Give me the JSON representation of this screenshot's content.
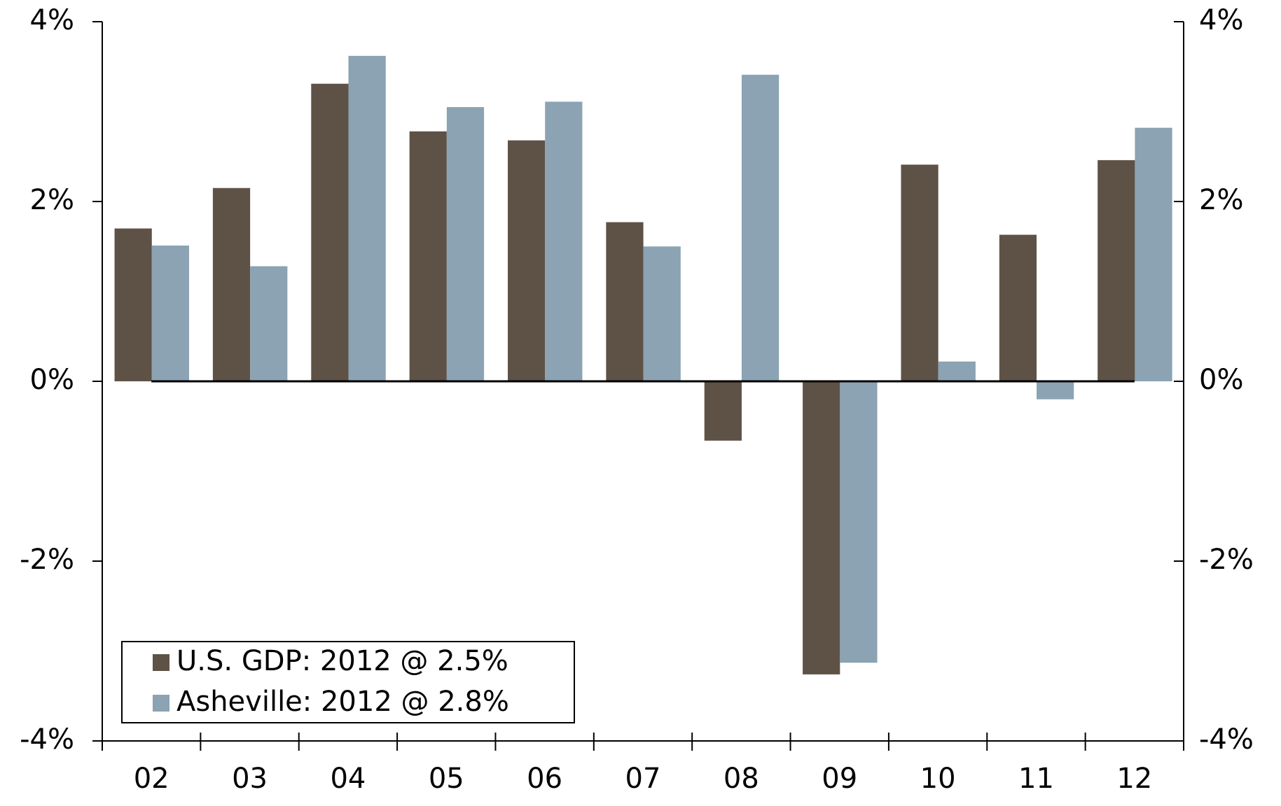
{
  "chart_data": {
    "type": "bar",
    "categories": [
      "02",
      "03",
      "04",
      "05",
      "06",
      "07",
      "08",
      "09",
      "10",
      "11",
      "12"
    ],
    "series": [
      {
        "name": "U.S. GDP: 2012 @ 2.5%",
        "color": "#5e5246",
        "values": [
          1.7,
          2.15,
          3.31,
          2.78,
          2.68,
          1.77,
          -0.66,
          -3.26,
          2.41,
          1.63,
          2.46
        ]
      },
      {
        "name": "Asheville: 2012 @ 2.8%",
        "color": "#8ba3b3",
        "values": [
          1.51,
          1.28,
          3.62,
          3.05,
          3.11,
          1.5,
          3.41,
          -3.13,
          0.22,
          -0.2,
          2.82
        ]
      }
    ],
    "ylim": [
      -4,
      4
    ],
    "yticks": [
      {
        "value": -4,
        "label": "-4%"
      },
      {
        "value": -2,
        "label": "-2%"
      },
      {
        "value": 0,
        "label": "0%"
      },
      {
        "value": 2,
        "label": "2%"
      },
      {
        "value": 4,
        "label": "4%"
      }
    ],
    "y2lim": [
      -4,
      4
    ],
    "y2ticks": [
      {
        "value": -4,
        "label": "-4%"
      },
      {
        "value": -2,
        "label": "-2%"
      },
      {
        "value": 0,
        "label": "0%"
      },
      {
        "value": 2,
        "label": "2%"
      },
      {
        "value": 4,
        "label": "4%"
      }
    ],
    "legend": "lower left",
    "grid": false
  }
}
